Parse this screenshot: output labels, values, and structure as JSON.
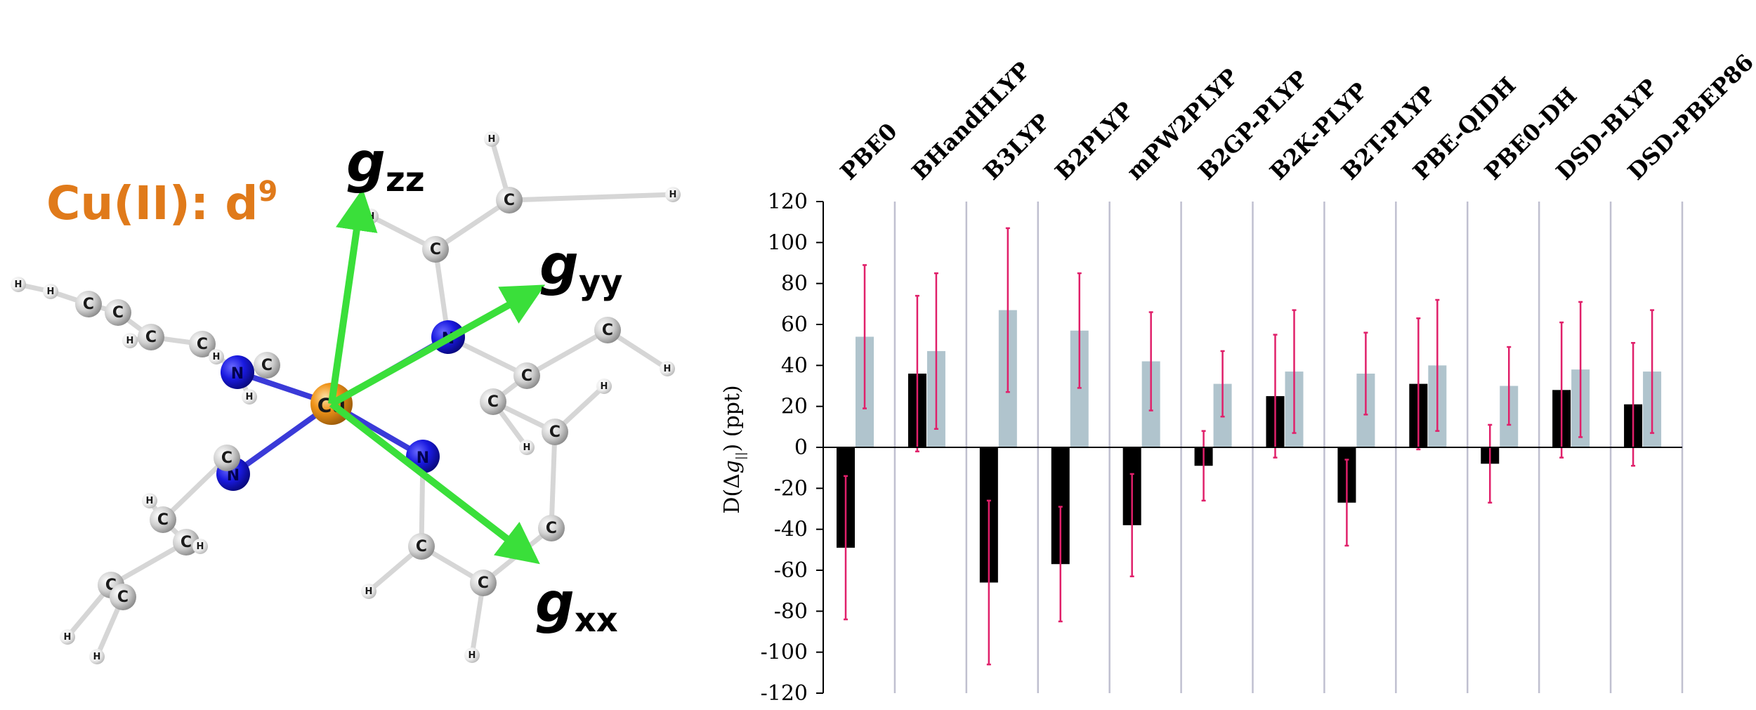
{
  "figure": {
    "molecule": {
      "heading_main": "Cu(II): d",
      "heading_sup": "9",
      "center_atom": "Cu",
      "nitrogen_label": "N",
      "carbon_label": "C",
      "hydrogen_label": "H",
      "axes": [
        {
          "symbol": "g",
          "subscript": "zz"
        },
        {
          "symbol": "g",
          "subscript": "yy"
        },
        {
          "symbol": "g",
          "subscript": "xx"
        }
      ],
      "colors": {
        "heading": "#e07a1a",
        "copper": "#f0941a",
        "nitrogen": "#1a1ae0",
        "carbon": "#c8c8c8",
        "hydrogen": "#e6e6e6",
        "arrow": "#3adf3a"
      }
    }
  },
  "chart_data": {
    "type": "bar",
    "categories": [
      "PBE0",
      "BHandHLYP",
      "B3LYP",
      "B2PLYP",
      "mPW2PLYP",
      "B2GP-PLYP",
      "B2K-PLYP",
      "B2T-PLYP",
      "PBE-QIDH",
      "PBE0-DH",
      "DSD-BLYP",
      "DSD-PBEP86"
    ],
    "ylabel_prefix": "D(Δ",
    "ylabel_var": "g",
    "ylabel_sub": "||",
    "ylabel_suffix": ") (ppt)",
    "ylim": [
      -120,
      120
    ],
    "yticks": [
      120,
      100,
      80,
      60,
      40,
      20,
      0,
      -20,
      -40,
      -60,
      -80,
      -100,
      -120
    ],
    "grid": false,
    "legend": "none",
    "series": [
      {
        "color": "#000000",
        "values": [
          -49,
          36,
          -66,
          -57,
          -38,
          -9,
          25,
          -27,
          31,
          -8,
          28,
          21
        ],
        "errors": [
          35,
          38,
          40,
          28,
          25,
          17,
          30,
          21,
          32,
          19,
          33,
          30
        ]
      },
      {
        "color": "#b0c4cd",
        "values": [
          54,
          47,
          67,
          57,
          42,
          31,
          37,
          36,
          40,
          30,
          38,
          37
        ],
        "errors": [
          35,
          38,
          40,
          28,
          24,
          16,
          30,
          20,
          32,
          19,
          33,
          30
        ]
      }
    ],
    "error_bar_color": "#e0206a",
    "separator_color": "#c0c0d0"
  }
}
